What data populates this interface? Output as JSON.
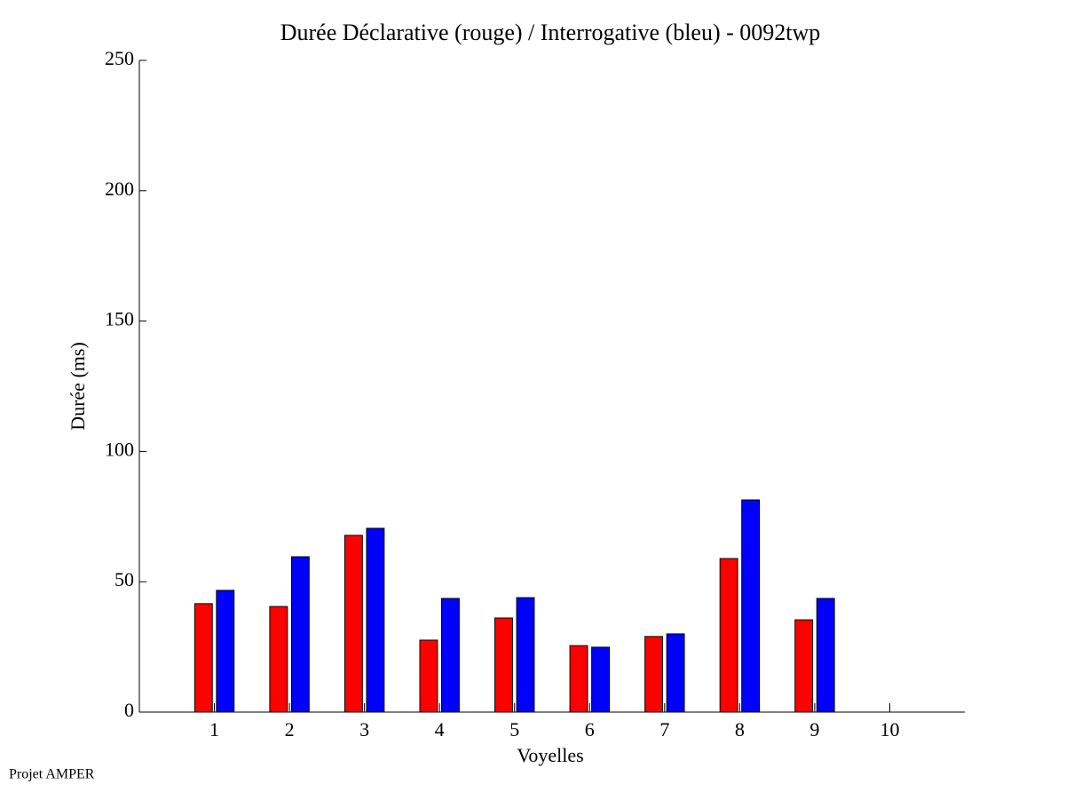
{
  "chart_data": {
    "type": "bar",
    "title": "Durée Déclarative (rouge) / Interrogative (bleu) - 0092twp",
    "x_label": "Voyelles",
    "y_label": "Durée (ms)",
    "footer": "Projet AMPER",
    "x": [
      1,
      2,
      3,
      4,
      5,
      6,
      7,
      8,
      9,
      10
    ],
    "series": [
      {
        "color": "#ff0000",
        "values": [
          41.6,
          40.5,
          67.8,
          27.6,
          36.1,
          25.5,
          29.0,
          58.9,
          35.4,
          null
        ]
      },
      {
        "color": "#0000ff",
        "values": [
          46.7,
          59.6,
          70.5,
          43.6,
          43.9,
          24.9,
          30.0,
          81.4,
          43.6,
          null
        ]
      }
    ],
    "xlim": [
      0,
      11
    ],
    "xticks": [
      1,
      2,
      3,
      4,
      5,
      6,
      7,
      8,
      9,
      10
    ],
    "ylim": [
      0,
      250
    ],
    "yticks": [
      0,
      50,
      100,
      150,
      200,
      250
    ]
  }
}
